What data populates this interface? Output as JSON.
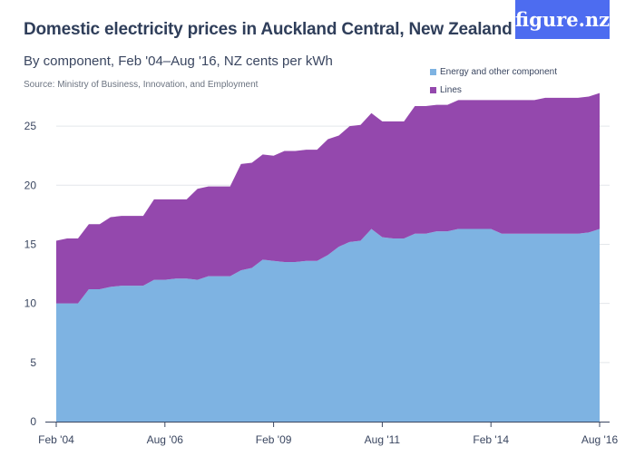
{
  "header": {
    "title": "Domestic electricity prices in Auckland Central, New Zealand",
    "subtitle": "By component, Feb '04–Aug '16, NZ cents per kWh",
    "source": "Source: Ministry of Business, Innovation, and Employment",
    "logo_text": "figure.nz"
  },
  "colors": {
    "energy": "#7eb3e2",
    "lines": "#9448ad",
    "logo_bg": "#4d6cf0",
    "axis": "#3a4660"
  },
  "chart_data": {
    "type": "area",
    "stacked": true,
    "title": "Domestic electricity prices in Auckland Central, New Zealand",
    "subtitle": "By component, Feb '04–Aug '16, NZ cents per kWh",
    "xlabel": "",
    "ylabel": "",
    "ylim": [
      0,
      28
    ],
    "yticks": [
      "0",
      "5",
      "10",
      "15",
      "20",
      "25"
    ],
    "xtick_labels": [
      "Feb '04",
      "Aug '06",
      "Feb '09",
      "Aug '11",
      "Feb '14",
      "Aug '16"
    ],
    "x": [
      "Feb 2004",
      "May 2004",
      "Aug 2004",
      "Nov 2004",
      "Feb 2005",
      "May 2005",
      "Aug 2005",
      "Nov 2005",
      "Feb 2006",
      "May 2006",
      "Aug 2006",
      "Nov 2006",
      "Feb 2007",
      "May 2007",
      "Aug 2007",
      "Nov 2007",
      "Feb 2008",
      "May 2008",
      "Aug 2008",
      "Nov 2008",
      "Feb 2009",
      "May 2009",
      "Aug 2009",
      "Nov 2009",
      "Feb 2010",
      "May 2010",
      "Aug 2010",
      "Nov 2010",
      "Feb 2011",
      "May 2011",
      "Aug 2011",
      "Nov 2011",
      "Feb 2012",
      "May 2012",
      "Aug 2012",
      "Nov 2012",
      "Feb 2013",
      "May 2013",
      "Aug 2013",
      "Nov 2013",
      "Feb 2014",
      "May 2014",
      "Aug 2014",
      "Nov 2014",
      "Feb 2015",
      "May 2015",
      "Aug 2015",
      "Nov 2015",
      "Feb 2016",
      "May 2016",
      "Aug 2016"
    ],
    "series": [
      {
        "name": "Energy and other component",
        "values": [
          10.0,
          10.0,
          10.0,
          11.2,
          11.2,
          11.4,
          11.5,
          11.5,
          11.5,
          12.0,
          12.0,
          12.1,
          12.1,
          12.0,
          12.3,
          12.3,
          12.3,
          12.8,
          13.0,
          13.7,
          13.6,
          13.5,
          13.5,
          13.6,
          13.6,
          14.1,
          14.8,
          15.2,
          15.3,
          16.3,
          15.6,
          15.5,
          15.5,
          15.9,
          15.9,
          16.1,
          16.1,
          16.3,
          16.3,
          16.3,
          16.3,
          15.9,
          15.9,
          15.9,
          15.9,
          15.9,
          15.9,
          15.9,
          15.9,
          16.0,
          16.3
        ]
      },
      {
        "name": "Lines",
        "values": [
          5.3,
          5.5,
          5.5,
          5.5,
          5.5,
          5.9,
          5.9,
          5.9,
          5.9,
          6.8,
          6.8,
          6.7,
          6.7,
          7.7,
          7.6,
          7.6,
          7.6,
          9.0,
          8.9,
          8.9,
          8.9,
          9.4,
          9.4,
          9.4,
          9.4,
          9.8,
          9.4,
          9.8,
          9.8,
          9.8,
          9.8,
          9.9,
          9.9,
          10.8,
          10.8,
          10.7,
          10.7,
          10.9,
          10.9,
          10.9,
          10.9,
          11.3,
          11.3,
          11.3,
          11.3,
          11.5,
          11.5,
          11.5,
          11.5,
          11.5,
          11.5
        ]
      }
    ],
    "legend_position": "top-right",
    "grid": {
      "y": true,
      "x": false
    }
  }
}
